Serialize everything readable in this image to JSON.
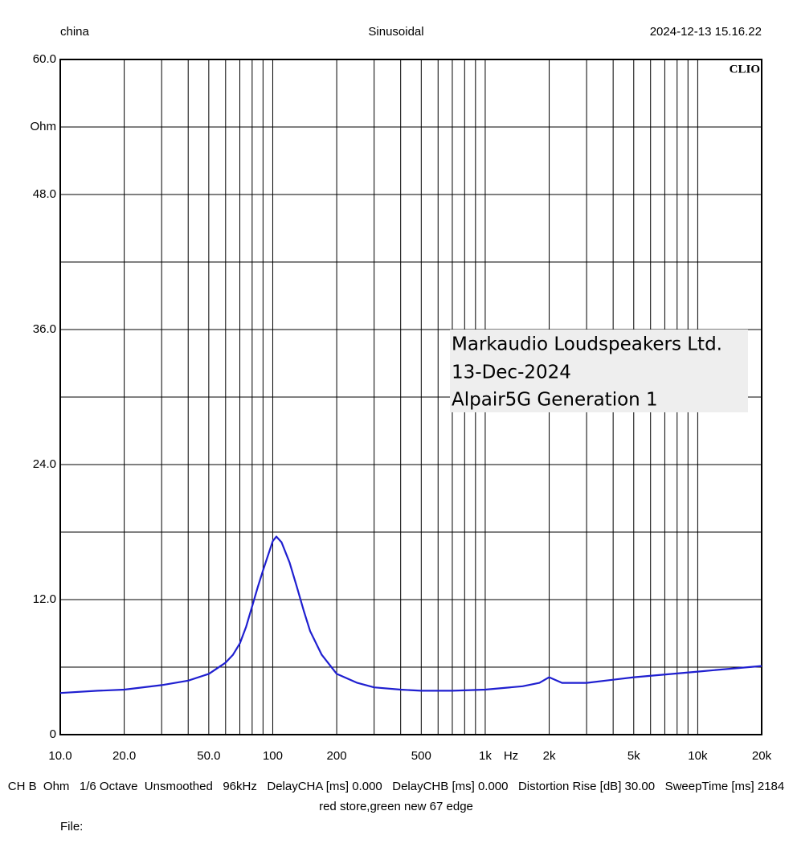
{
  "chart_data": {
    "type": "line",
    "header_left": "china",
    "header_center": "Sinusoidal",
    "header_right": "2024-12-13 15.16.22",
    "brand": "CLIO",
    "annotation": [
      "Markaudio Loudspeakers Ltd.",
      "13-Dec-2024",
      "Alpair5G Generation 1"
    ],
    "x_label": "Hz",
    "settings": "CH B  Ohm   1/6 Octave  Unsmoothed   96kHz   DelayCHA [ms] 0.000   DelayCHB [ms] 0.000   Distortion Rise [dB] 30.00   SweepTime [ms] 2184",
    "subtitle": "red store,green new 67 edge",
    "file_label": "File:",
    "xscale": "log",
    "xlim": [
      10,
      20000
    ],
    "ylim": [
      0,
      60
    ],
    "xticks": [
      {
        "value": 10,
        "label": "10.0"
      },
      {
        "value": 20,
        "label": "20.0"
      },
      {
        "value": 50,
        "label": "50.0"
      },
      100,
      200,
      500,
      {
        "value": 1000,
        "label": "1k"
      },
      {
        "value": 2000,
        "label": "2k"
      },
      {
        "value": 5000,
        "label": "5k"
      },
      {
        "value": 10000,
        "label": "10k"
      },
      {
        "value": 20000,
        "label": "20k"
      }
    ],
    "x_minor_ticks": [
      30,
      40,
      60,
      70,
      80,
      90,
      300,
      400,
      600,
      700,
      800,
      900,
      3000,
      4000,
      6000,
      7000,
      8000,
      9000
    ],
    "yticks": [
      0,
      {
        "value": 12,
        "label": "12.0"
      },
      {
        "value": 24,
        "label": "24.0"
      },
      {
        "value": 36,
        "label": "36.0"
      },
      {
        "value": 48,
        "label": "48.0"
      },
      {
        "value": 54,
        "label": "Ohm"
      },
      {
        "value": 60,
        "label": "60.0"
      }
    ],
    "y_minor_ticks": [
      6,
      18,
      30,
      42
    ],
    "grid": true,
    "series": [
      {
        "color": "#1f1fd0",
        "x": [
          10,
          15,
          20,
          30,
          40,
          50,
          60,
          65,
          70,
          75,
          80,
          85,
          90,
          100,
          104,
          110,
          120,
          130,
          140,
          150,
          170,
          200,
          250,
          300,
          400,
          500,
          700,
          1000,
          1500,
          1800,
          2000,
          2300,
          3000,
          5000,
          10000,
          20000
        ],
        "values": [
          3.7,
          3.9,
          4.0,
          4.4,
          4.8,
          5.4,
          6.4,
          7.1,
          8.1,
          9.6,
          11.4,
          13.1,
          14.6,
          17.2,
          17.6,
          17.1,
          15.3,
          13.1,
          11.0,
          9.2,
          7.1,
          5.4,
          4.6,
          4.2,
          4.0,
          3.9,
          3.9,
          4.0,
          4.3,
          4.6,
          5.1,
          4.6,
          4.6,
          5.1,
          5.6,
          6.1
        ]
      }
    ]
  }
}
